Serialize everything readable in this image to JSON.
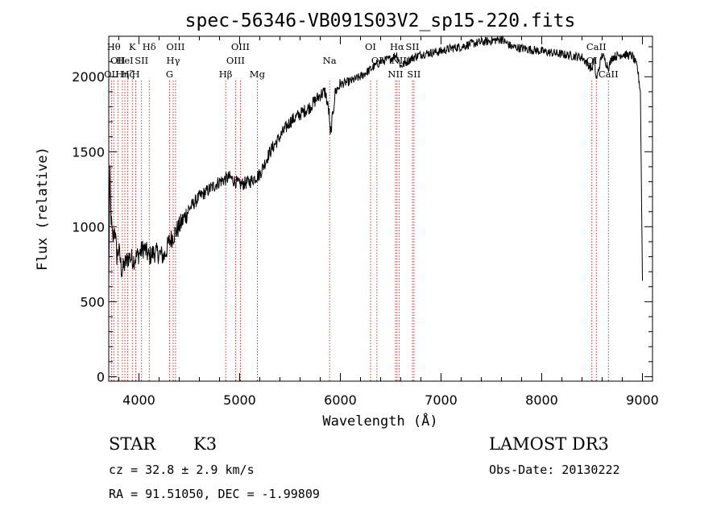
{
  "chart_data": {
    "type": "line",
    "title": "spec-56346-VB091S03V2_sp15-220.fits",
    "xlabel": "Wavelength (Å)",
    "ylabel": "Flux (relative)",
    "xlim": [
      3700,
      9100
    ],
    "ylim": [
      -30,
      2270
    ],
    "xticks": [
      4000,
      5000,
      6000,
      7000,
      8000,
      9000
    ],
    "yticks": [
      0,
      500,
      1000,
      1500,
      2000
    ],
    "spectrum": {
      "x": [
        3700,
        3710,
        3720,
        3740,
        3760,
        3780,
        3800,
        3830,
        3860,
        3900,
        3950,
        4000,
        4050,
        4100,
        4150,
        4200,
        4250,
        4300,
        4350,
        4400,
        4500,
        4600,
        4700,
        4800,
        4900,
        5000,
        5100,
        5200,
        5300,
        5400,
        5500,
        5600,
        5700,
        5800,
        5850,
        5890,
        5900,
        5950,
        6000,
        6100,
        6200,
        6300,
        6400,
        6500,
        6560,
        6600,
        6700,
        6800,
        6900,
        7000,
        7100,
        7200,
        7300,
        7400,
        7500,
        7600,
        7700,
        7800,
        7900,
        8000,
        8100,
        8200,
        8300,
        8400,
        8498,
        8520,
        8542,
        8600,
        8662,
        8700,
        8800,
        8900,
        8950,
        8980,
        9000
      ],
      "y": [
        600,
        1400,
        1100,
        900,
        1000,
        800,
        850,
        700,
        750,
        800,
        780,
        820,
        860,
        800,
        830,
        820,
        800,
        900,
        950,
        1000,
        1120,
        1200,
        1250,
        1300,
        1330,
        1280,
        1300,
        1350,
        1500,
        1600,
        1700,
        1750,
        1800,
        1880,
        1900,
        1750,
        1600,
        1900,
        1950,
        1970,
        2000,
        2050,
        2100,
        2120,
        2150,
        2070,
        2120,
        2150,
        2160,
        2170,
        2190,
        2200,
        2220,
        2230,
        2240,
        2250,
        2200,
        2190,
        2180,
        2170,
        2160,
        2150,
        2140,
        2130,
        2050,
        2120,
        1980,
        2150,
        2060,
        2130,
        2150,
        2140,
        2060,
        1900,
        650
      ]
    },
    "lines": [
      {
        "x": 3727,
        "label": "OII",
        "row": 2
      },
      {
        "x": 3750,
        "label": "Hθ",
        "row": 0
      },
      {
        "x": 3790,
        "label": "OII",
        "row": 1
      },
      {
        "x": 3835,
        "label": "Hη",
        "row": 2
      },
      {
        "x": 3860,
        "label": "HeI",
        "row": 1
      },
      {
        "x": 3889,
        "label": "Hζ",
        "row": 2
      },
      {
        "x": 3934,
        "label": "K",
        "row": 0
      },
      {
        "x": 3968,
        "label": "H",
        "row": 2
      },
      {
        "x": 4026,
        "label": "SII",
        "row": 1
      },
      {
        "x": 4102,
        "label": "Hδ",
        "row": 0
      },
      {
        "x": 4304,
        "label": "G",
        "row": 2
      },
      {
        "x": 4340,
        "label": "Hγ",
        "row": 1
      },
      {
        "x": 4363,
        "label": "OIII",
        "row": 0
      },
      {
        "x": 4861,
        "label": "Hβ",
        "row": 2
      },
      {
        "x": 4959,
        "label": "OIII",
        "row": 1
      },
      {
        "x": 5007,
        "label": "OIII",
        "row": 0
      },
      {
        "x": 5175,
        "label": "Mg",
        "row": 2
      },
      {
        "x": 5893,
        "label": "Na",
        "row": 1
      },
      {
        "x": 6300,
        "label": "OI",
        "row": 0
      },
      {
        "x": 6363,
        "label": "OI",
        "row": 1
      },
      {
        "x": 6548,
        "label": "NII",
        "row": 2
      },
      {
        "x": 6563,
        "label": "Hα",
        "row": 0
      },
      {
        "x": 6583,
        "label": "NII",
        "row": 1
      },
      {
        "x": 6716,
        "label": "SII",
        "row": 0
      },
      {
        "x": 6731,
        "label": "SII",
        "row": 2
      },
      {
        "x": 8498,
        "label": "OI",
        "row": 1
      },
      {
        "x": 8542,
        "label": "CaII",
        "row": 0
      },
      {
        "x": 8662,
        "label": "CaII",
        "row": 2
      }
    ]
  },
  "info": {
    "class": "STAR",
    "subclass": "K3",
    "cz": "cz = 32.8 ± 2.9 km/s",
    "coords": "RA =  91.51050, DEC =  -1.99809",
    "survey": "LAMOST DR3",
    "obsdate": "Obs-Date: 20130222"
  }
}
